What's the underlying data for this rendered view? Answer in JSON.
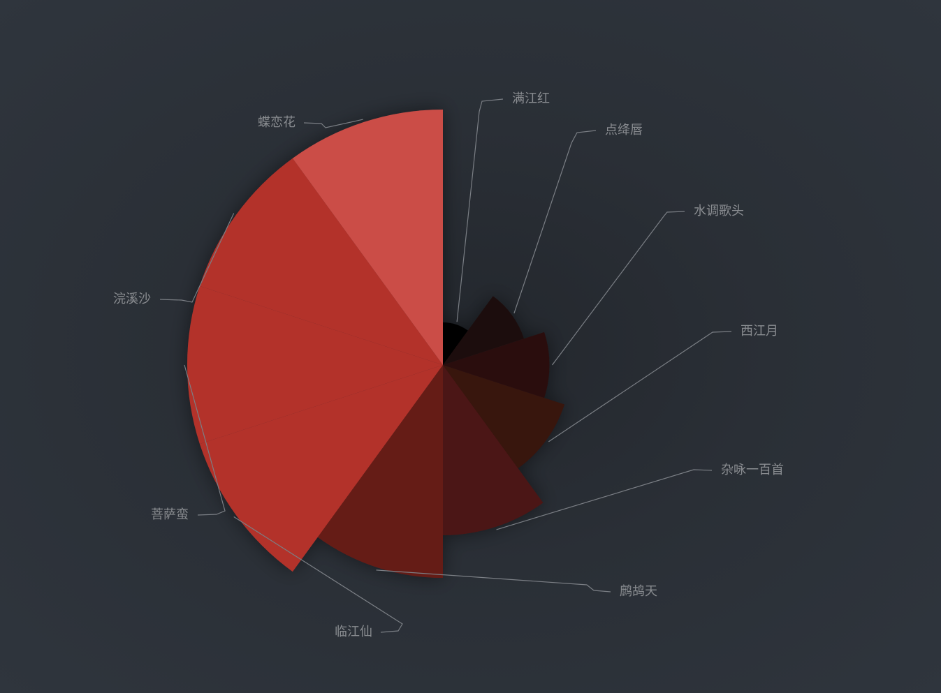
{
  "chart_data": {
    "type": "pie",
    "variant": "nightingale-rose (radius by value, equal angles)",
    "start_angle": "12 o'clock, clockwise",
    "series": [
      {
        "name": "满江红",
        "value": 2,
        "color": "#050101"
      },
      {
        "name": "点绛唇",
        "value": 4,
        "color": "#1e0d0b"
      },
      {
        "name": "水调歌头",
        "value": 5,
        "color": "#2b100d"
      },
      {
        "name": "西江月",
        "value": 6,
        "color": "#38130f"
      },
      {
        "name": "杂咏一百首",
        "value": 8,
        "color": "#4b1612"
      },
      {
        "name": "鹧鸪天",
        "value": 10,
        "color": "#651b17"
      },
      {
        "name": "临江仙",
        "value": 12,
        "color": "#b3332c"
      },
      {
        "name": "菩萨蛮",
        "value": 12,
        "color": "#b3332c"
      },
      {
        "name": "浣溪沙",
        "value": 12,
        "color": "#b3332c"
      },
      {
        "name": "蝶恋花",
        "value": 12,
        "color": "#cb4e47"
      }
    ],
    "background": "#2c313a",
    "label_color": "#8a8d91",
    "leader_color": "#7b7f85"
  }
}
